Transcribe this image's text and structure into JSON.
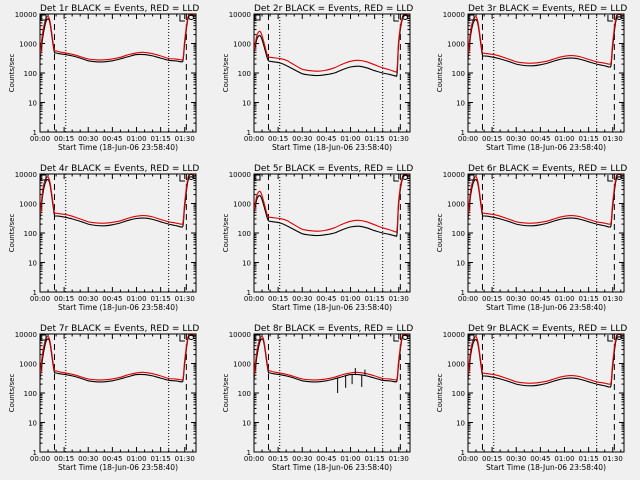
{
  "colors": {
    "background": "#f0f0f0",
    "axes": "#000000",
    "events": "#000000",
    "lld": "#e00000"
  },
  "shared": {
    "xlabel": "Start Time (18-Jun-06 23:58:40)",
    "ylabel": "Counts/sec",
    "xticks": [
      "00:00",
      "00:15",
      "00:30",
      "00:45",
      "01:00",
      "01:15",
      "01:30"
    ],
    "yticks": [
      "1",
      "10",
      "100",
      "1000",
      "10000"
    ]
  },
  "chart_data": [
    {
      "type": "line",
      "title": "Det 1r BLACK = Events, RED = LLD",
      "xlabel": "Start Time (18-Jun-06 23:58:40)",
      "ylabel": "Counts/sec",
      "xlim_min": [
        0,
        97
      ],
      "ylim": [
        1,
        10000
      ],
      "yscale": "log",
      "dashed_lines_min": [
        9,
        91
      ],
      "dotted_lines_min": [
        16,
        80
      ],
      "x_min": [
        0,
        2,
        4,
        6,
        8,
        9,
        10,
        12,
        16,
        20,
        25,
        30,
        35,
        40,
        45,
        50,
        55,
        60,
        65,
        70,
        75,
        80,
        84,
        86,
        88,
        89,
        90,
        92,
        94,
        96
      ],
      "series": [
        {
          "name": "Events",
          "values": [
            300,
            2000,
            6000,
            5500,
            1000,
            500,
            480,
            450,
            420,
            380,
            320,
            260,
            240,
            240,
            260,
            300,
            360,
            420,
            420,
            380,
            320,
            270,
            260,
            250,
            240,
            280,
            1000,
            7000,
            9000,
            8000
          ]
        },
        {
          "name": "LLD",
          "values": [
            400,
            3000,
            7500,
            6500,
            1200,
            600,
            560,
            520,
            480,
            430,
            360,
            300,
            280,
            280,
            300,
            340,
            420,
            480,
            500,
            450,
            380,
            310,
            300,
            290,
            280,
            320,
            1300,
            8000,
            10000,
            9000
          ]
        }
      ]
    },
    {
      "type": "line",
      "title": "Det 2r BLACK = Events, RED = LLD",
      "xlabel": "Start Time (18-Jun-06 23:58:40)",
      "ylabel": "Counts/sec",
      "xlim_min": [
        0,
        97
      ],
      "ylim": [
        1,
        10000
      ],
      "yscale": "log",
      "dashed_lines_min": [
        9,
        91
      ],
      "dotted_lines_min": [
        16,
        80
      ],
      "x_min": [
        0,
        2,
        4,
        6,
        8,
        9,
        10,
        12,
        16,
        20,
        25,
        30,
        35,
        40,
        45,
        50,
        55,
        60,
        65,
        70,
        75,
        80,
        84,
        86,
        88,
        89,
        90,
        92,
        94,
        96
      ],
      "series": [
        {
          "name": "Events",
          "values": [
            500,
            1500,
            1800,
            900,
            350,
            260,
            250,
            240,
            220,
            180,
            130,
            95,
            85,
            82,
            88,
            100,
            130,
            160,
            170,
            150,
            120,
            100,
            90,
            85,
            80,
            100,
            1000,
            6000,
            9000,
            8000
          ]
        },
        {
          "name": "LLD",
          "values": [
            600,
            2000,
            2500,
            1200,
            450,
            350,
            340,
            330,
            310,
            270,
            190,
            135,
            120,
            115,
            125,
            150,
            200,
            250,
            270,
            240,
            190,
            150,
            130,
            120,
            110,
            140,
            1300,
            7000,
            10000,
            9000
          ]
        }
      ]
    },
    {
      "type": "line",
      "title": "Det 3r BLACK = Events, RED = LLD",
      "xlabel": "Start Time (18-Jun-06 23:58:40)",
      "ylabel": "Counts/sec",
      "xlim_min": [
        0,
        97
      ],
      "ylim": [
        1,
        10000
      ],
      "yscale": "log",
      "dashed_lines_min": [
        9,
        91
      ],
      "dotted_lines_min": [
        16,
        80
      ],
      "x_min": [
        0,
        2,
        4,
        6,
        8,
        9,
        10,
        12,
        16,
        20,
        25,
        30,
        35,
        40,
        45,
        50,
        55,
        60,
        65,
        70,
        75,
        80,
        84,
        86,
        88,
        89,
        90,
        92,
        94,
        96
      ],
      "series": [
        {
          "name": "Events",
          "values": [
            300,
            2500,
            6000,
            5000,
            900,
            400,
            380,
            370,
            340,
            300,
            250,
            200,
            180,
            175,
            190,
            220,
            270,
            310,
            320,
            290,
            240,
            200,
            180,
            170,
            160,
            190,
            800,
            6000,
            8000,
            7000
          ]
        },
        {
          "name": "LLD",
          "values": [
            400,
            3500,
            7500,
            6000,
            1100,
            500,
            470,
            450,
            420,
            370,
            300,
            240,
            220,
            215,
            230,
            260,
            320,
            370,
            390,
            350,
            290,
            240,
            220,
            210,
            200,
            240,
            1100,
            7500,
            10000,
            8500
          ]
        }
      ]
    },
    {
      "type": "line",
      "title": "Det 4r BLACK = Events, RED = LLD",
      "xlabel": "Start Time (18-Jun-06 23:58:40)",
      "ylabel": "Counts/sec",
      "xlim_min": [
        0,
        97
      ],
      "ylim": [
        1,
        10000
      ],
      "yscale": "log",
      "dashed_lines_min": [
        9,
        91
      ],
      "dotted_lines_min": [
        16,
        80
      ],
      "x_min": [
        0,
        2,
        4,
        6,
        8,
        9,
        10,
        12,
        16,
        20,
        25,
        30,
        35,
        40,
        45,
        50,
        55,
        60,
        65,
        70,
        75,
        80,
        84,
        86,
        88,
        89,
        90,
        92,
        94,
        96
      ],
      "series": [
        {
          "name": "Events",
          "values": [
            300,
            2500,
            6000,
            5000,
            900,
            400,
            380,
            370,
            340,
            300,
            250,
            200,
            180,
            175,
            190,
            220,
            270,
            310,
            320,
            290,
            240,
            200,
            180,
            170,
            160,
            190,
            800,
            6000,
            8000,
            7000
          ]
        },
        {
          "name": "LLD",
          "values": [
            400,
            3500,
            7500,
            6000,
            1100,
            500,
            470,
            450,
            420,
            370,
            300,
            240,
            220,
            215,
            230,
            260,
            320,
            370,
            390,
            350,
            290,
            240,
            220,
            210,
            200,
            240,
            1100,
            7500,
            10000,
            8500
          ]
        }
      ]
    },
    {
      "type": "line",
      "title": "Det 5r BLACK = Events, RED = LLD",
      "xlabel": "Start Time (18-Jun-06 23:58:40)",
      "ylabel": "Counts/sec",
      "xlim_min": [
        0,
        97
      ],
      "ylim": [
        1,
        10000
      ],
      "yscale": "log",
      "dashed_lines_min": [
        9,
        91
      ],
      "dotted_lines_min": [
        16,
        80
      ],
      "x_min": [
        0,
        2,
        4,
        6,
        8,
        9,
        10,
        12,
        16,
        20,
        25,
        30,
        35,
        40,
        45,
        50,
        55,
        60,
        65,
        70,
        75,
        80,
        84,
        86,
        88,
        89,
        90,
        92,
        94,
        96
      ],
      "series": [
        {
          "name": "Events",
          "values": [
            500,
            1500,
            1800,
            900,
            350,
            260,
            250,
            240,
            220,
            180,
            130,
            95,
            85,
            82,
            88,
            100,
            130,
            160,
            170,
            150,
            120,
            100,
            90,
            85,
            80,
            100,
            1000,
            6000,
            9000,
            8000
          ]
        },
        {
          "name": "LLD",
          "values": [
            600,
            2000,
            2500,
            1200,
            450,
            350,
            340,
            330,
            310,
            270,
            190,
            135,
            120,
            115,
            125,
            150,
            200,
            250,
            270,
            240,
            190,
            150,
            130,
            120,
            110,
            140,
            1300,
            7000,
            10000,
            9000
          ]
        }
      ]
    },
    {
      "type": "line",
      "title": "Det 6r BLACK = Events, RED = LLD",
      "xlabel": "Start Time (18-Jun-06 23:58:40)",
      "ylabel": "Counts/sec",
      "xlim_min": [
        0,
        97
      ],
      "ylim": [
        1,
        10000
      ],
      "yscale": "log",
      "dashed_lines_min": [
        9,
        91
      ],
      "dotted_lines_min": [
        16,
        80
      ],
      "x_min": [
        0,
        2,
        4,
        6,
        8,
        9,
        10,
        12,
        16,
        20,
        25,
        30,
        35,
        40,
        45,
        50,
        55,
        60,
        65,
        70,
        75,
        80,
        84,
        86,
        88,
        89,
        90,
        92,
        94,
        96
      ],
      "series": [
        {
          "name": "Events",
          "values": [
            300,
            2500,
            6000,
            5000,
            900,
            400,
            380,
            370,
            340,
            300,
            250,
            200,
            180,
            175,
            190,
            220,
            270,
            310,
            320,
            290,
            240,
            200,
            180,
            170,
            160,
            190,
            800,
            6000,
            8000,
            7000
          ]
        },
        {
          "name": "LLD",
          "values": [
            400,
            3500,
            7500,
            6000,
            1100,
            500,
            470,
            450,
            420,
            370,
            300,
            240,
            220,
            215,
            230,
            260,
            320,
            370,
            390,
            350,
            290,
            240,
            220,
            210,
            200,
            240,
            1100,
            7500,
            10000,
            8500
          ]
        }
      ]
    },
    {
      "type": "line",
      "title": "Det 7r BLACK = Events, RED = LLD",
      "xlabel": "Start Time (18-Jun-06 23:58:40)",
      "ylabel": "Counts/sec",
      "xlim_min": [
        0,
        97
      ],
      "ylim": [
        1,
        10000
      ],
      "yscale": "log",
      "dashed_lines_min": [
        9,
        91
      ],
      "dotted_lines_min": [
        16,
        80
      ],
      "x_min": [
        0,
        2,
        4,
        6,
        8,
        9,
        10,
        12,
        16,
        20,
        25,
        30,
        35,
        40,
        45,
        50,
        55,
        60,
        65,
        70,
        75,
        80,
        84,
        86,
        88,
        89,
        90,
        92,
        94,
        96
      ],
      "series": [
        {
          "name": "Events",
          "values": [
            300,
            2000,
            6000,
            5500,
            1000,
            500,
            480,
            450,
            420,
            380,
            320,
            260,
            240,
            240,
            260,
            300,
            360,
            420,
            420,
            380,
            320,
            270,
            260,
            250,
            240,
            280,
            1000,
            7000,
            9000,
            8000
          ]
        },
        {
          "name": "LLD",
          "values": [
            400,
            3000,
            7500,
            6500,
            1200,
            600,
            560,
            520,
            480,
            430,
            360,
            300,
            280,
            280,
            300,
            340,
            420,
            480,
            500,
            450,
            380,
            310,
            300,
            290,
            280,
            320,
            1300,
            8000,
            10000,
            9000
          ]
        }
      ]
    },
    {
      "type": "line",
      "title": "Det 8r BLACK = Events, RED = LLD",
      "xlabel": "Start Time (18-Jun-06 23:58:40)",
      "ylabel": "Counts/sec",
      "xlim_min": [
        0,
        97
      ],
      "ylim": [
        1,
        10000
      ],
      "yscale": "log",
      "dashed_lines_min": [
        9,
        91
      ],
      "dotted_lines_min": [
        16,
        80
      ],
      "x_min": [
        0,
        2,
        4,
        6,
        8,
        9,
        10,
        12,
        16,
        20,
        25,
        30,
        35,
        40,
        45,
        50,
        55,
        60,
        65,
        70,
        75,
        80,
        84,
        86,
        88,
        89,
        90,
        92,
        94,
        96
      ],
      "series": [
        {
          "name": "Events",
          "values": [
            300,
            2000,
            6000,
            5500,
            1000,
            500,
            480,
            450,
            420,
            380,
            320,
            260,
            240,
            240,
            260,
            300,
            360,
            420,
            420,
            380,
            320,
            270,
            260,
            250,
            240,
            280,
            1000,
            7000,
            9000,
            8000
          ]
        },
        {
          "name": "LLD",
          "values": [
            400,
            3000,
            7500,
            6500,
            1200,
            600,
            560,
            520,
            480,
            430,
            360,
            300,
            280,
            280,
            300,
            340,
            420,
            480,
            500,
            450,
            380,
            310,
            300,
            290,
            280,
            320,
            1300,
            8000,
            10000,
            9000
          ]
        }
      ],
      "spikes": [
        {
          "x_min": 52,
          "low": 100
        },
        {
          "x_min": 57,
          "low": 150
        },
        {
          "x_min": 61,
          "low": 200
        },
        {
          "x_min": 63,
          "high": 700
        },
        {
          "x_min": 67,
          "low": 160
        },
        {
          "x_min": 69,
          "high": 620
        }
      ]
    },
    {
      "type": "line",
      "title": "Det 9r BLACK = Events, RED = LLD",
      "xlabel": "Start Time (18-Jun-06 23:58:40)",
      "ylabel": "Counts/sec",
      "xlim_min": [
        0,
        97
      ],
      "ylim": [
        1,
        10000
      ],
      "yscale": "log",
      "dashed_lines_min": [
        9,
        91
      ],
      "dotted_lines_min": [
        16,
        80
      ],
      "x_min": [
        0,
        2,
        4,
        6,
        8,
        9,
        10,
        12,
        16,
        20,
        25,
        30,
        35,
        40,
        45,
        50,
        55,
        60,
        65,
        70,
        75,
        80,
        84,
        86,
        88,
        89,
        90,
        92,
        94,
        96
      ],
      "series": [
        {
          "name": "Events",
          "values": [
            300,
            2500,
            6000,
            5000,
            900,
            400,
            380,
            370,
            340,
            300,
            250,
            200,
            180,
            175,
            190,
            220,
            270,
            310,
            320,
            290,
            240,
            200,
            180,
            170,
            160,
            190,
            800,
            6000,
            8000,
            7000
          ]
        },
        {
          "name": "LLD",
          "values": [
            400,
            3500,
            7500,
            6000,
            1100,
            500,
            470,
            450,
            420,
            370,
            300,
            240,
            220,
            215,
            230,
            260,
            320,
            370,
            390,
            350,
            290,
            240,
            220,
            210,
            200,
            240,
            1100,
            7500,
            10000,
            8500
          ]
        }
      ]
    }
  ]
}
